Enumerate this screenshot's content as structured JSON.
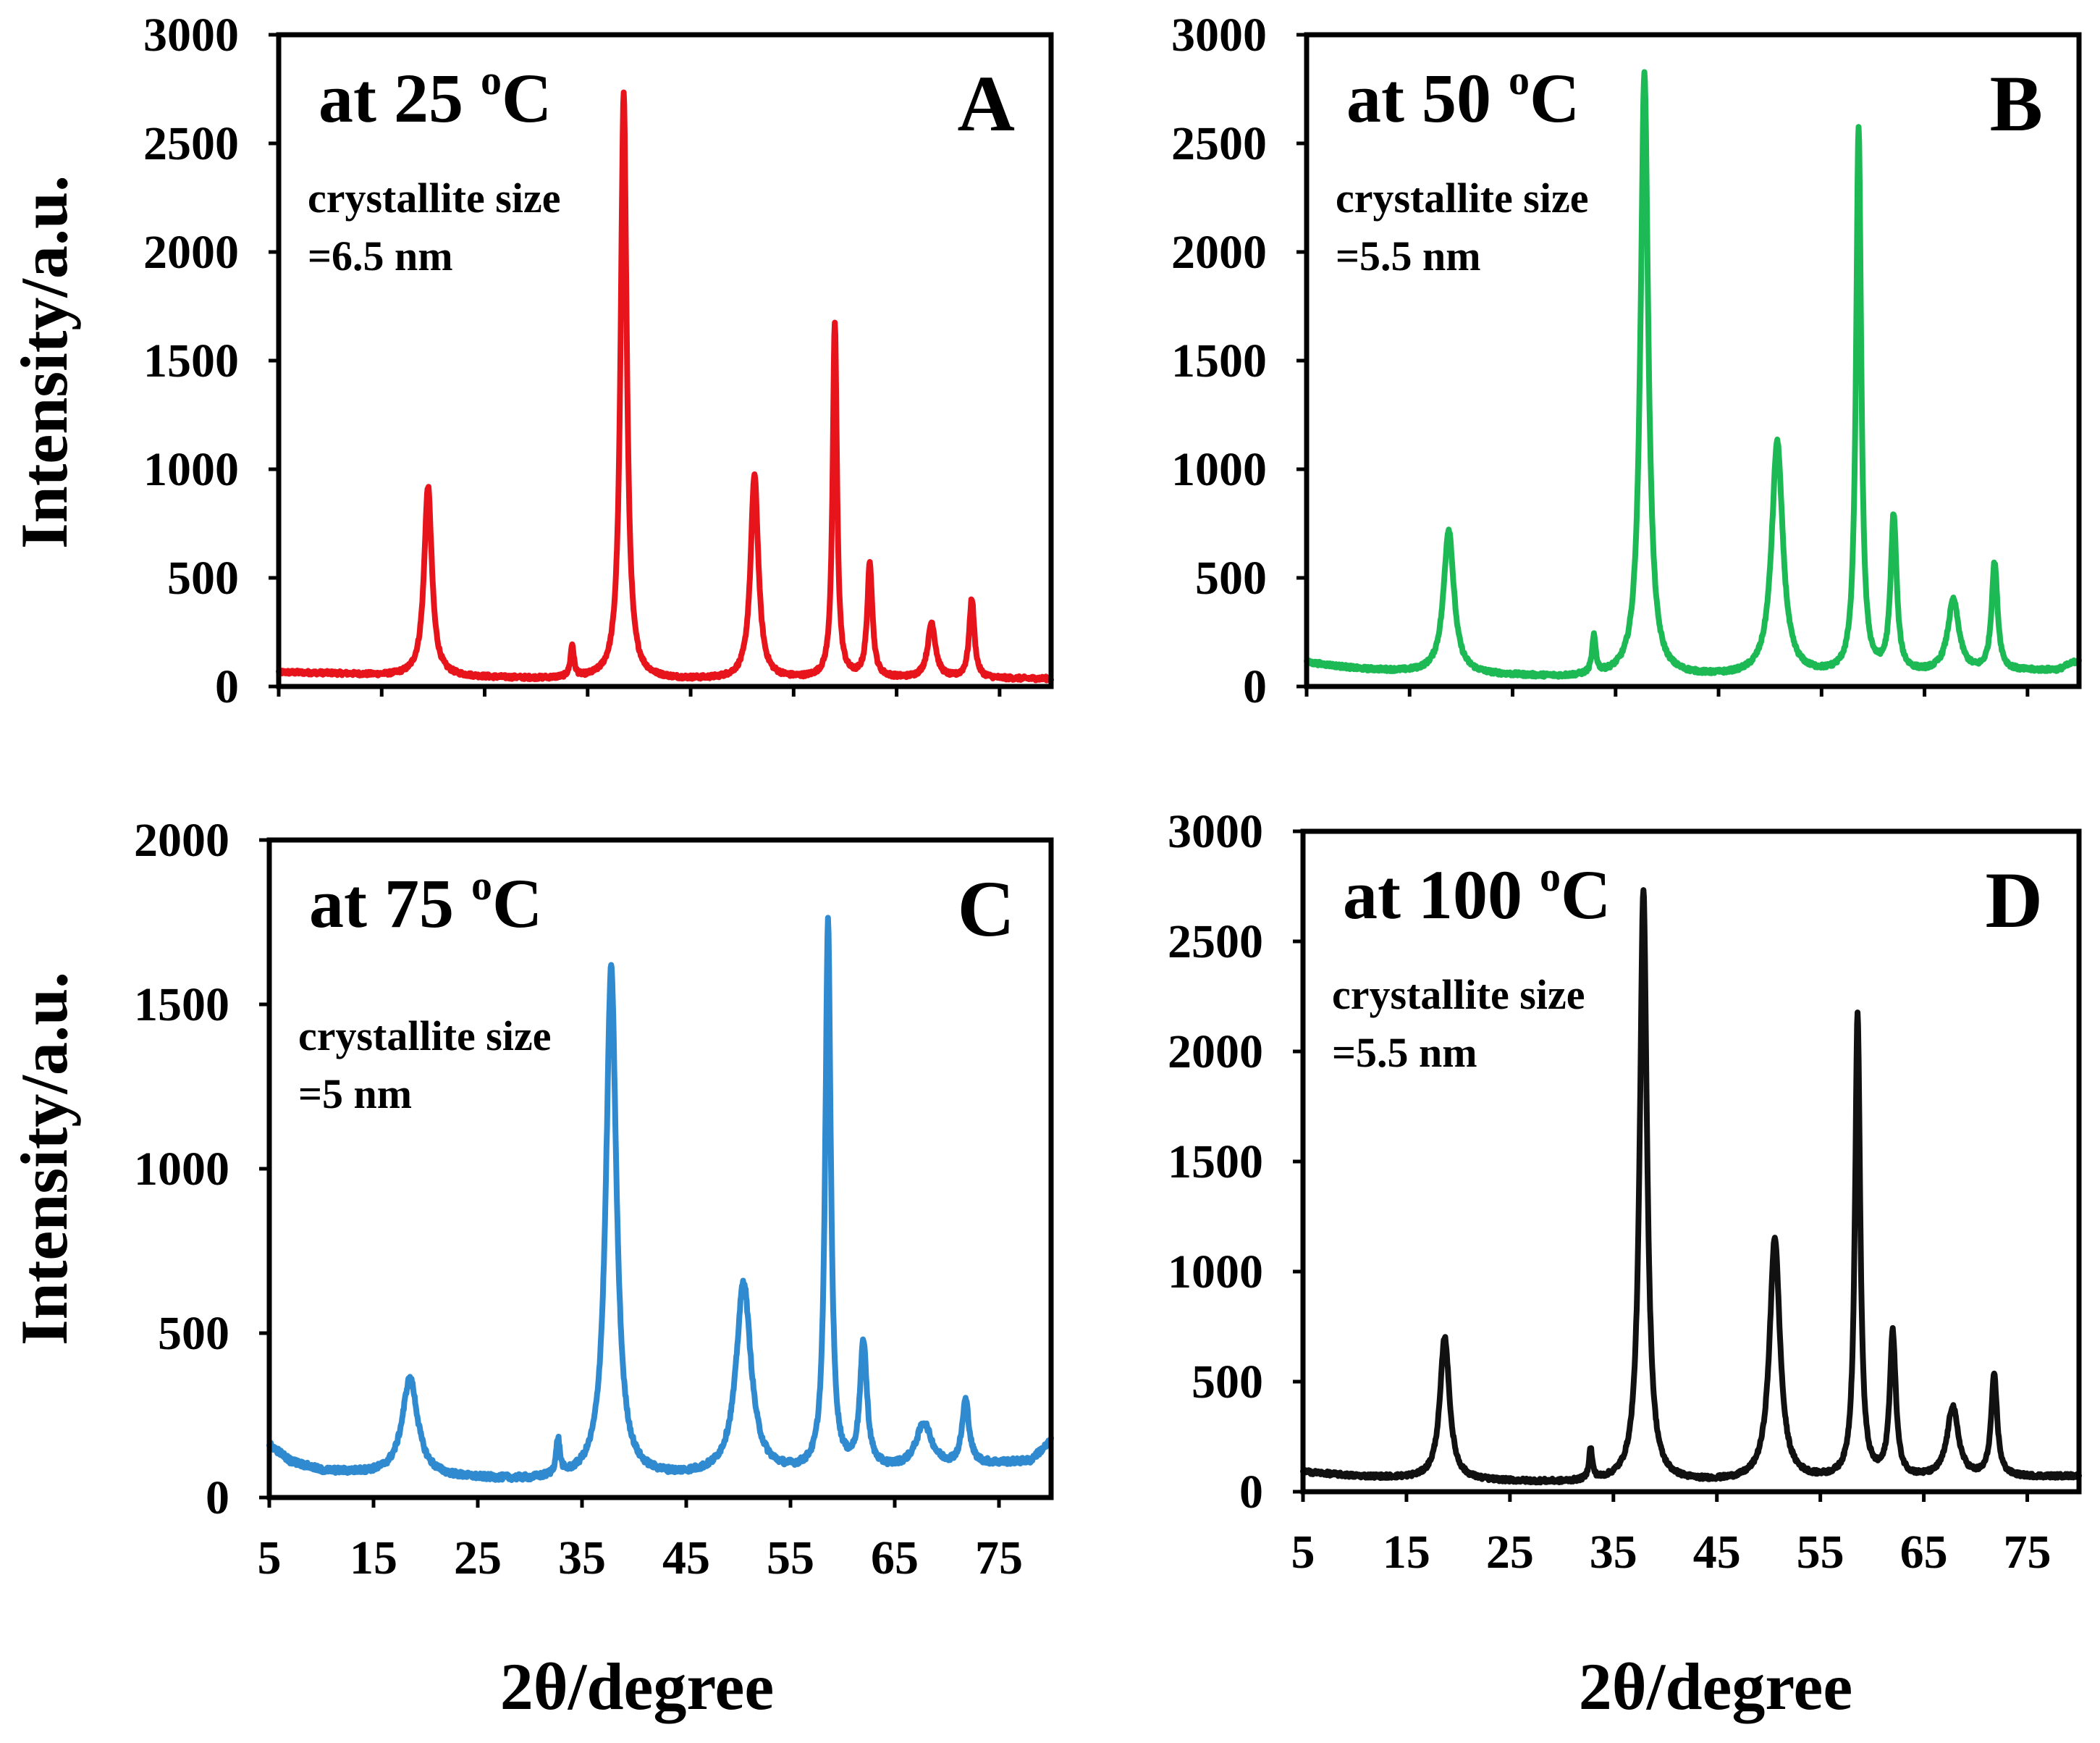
{
  "figure": {
    "y_axis_title": "Intensity/a.u.",
    "x_axis_title": "2θ/degree"
  },
  "chart_data": [
    {
      "type": "line",
      "panel": "A",
      "temperature_label": "at 25 ",
      "temperature_sup": "o",
      "temperature_unit": "C",
      "annotation_line1": "crystallite size",
      "annotation_line2": "=6.5 nm",
      "color": "#e8141b",
      "xlim": [
        5,
        80
      ],
      "ylim": [
        0,
        3000
      ],
      "yticks": [
        0,
        500,
        1000,
        1500,
        2000,
        2500,
        3000
      ],
      "xticks": [],
      "baseline": [
        [
          5,
          65
        ],
        [
          10,
          60
        ],
        [
          15,
          50
        ],
        [
          20,
          45
        ],
        [
          30,
          35
        ],
        [
          40,
          30
        ],
        [
          50,
          30
        ],
        [
          60,
          35
        ],
        [
          70,
          35
        ],
        [
          80,
          35
        ]
      ],
      "peaks": [
        {
          "x": 19.5,
          "y": 920,
          "w": 0.45
        },
        {
          "x": 33.5,
          "y": 180,
          "w": 0.2
        },
        {
          "x": 38.5,
          "y": 2740,
          "w": 0.35
        },
        {
          "x": 51.2,
          "y": 970,
          "w": 0.45
        },
        {
          "x": 59.0,
          "y": 1670,
          "w": 0.25
        },
        {
          "x": 62.4,
          "y": 560,
          "w": 0.3
        },
        {
          "x": 68.4,
          "y": 290,
          "w": 0.45
        },
        {
          "x": 72.3,
          "y": 400,
          "w": 0.3
        }
      ]
    },
    {
      "type": "line",
      "panel": "B",
      "temperature_label": "at 50 ",
      "temperature_sup": "o",
      "temperature_unit": "C",
      "annotation_line1": "crystallite size",
      "annotation_line2": "=5.5 nm",
      "color": "#1db954",
      "xlim": [
        5,
        80
      ],
      "ylim": [
        0,
        3000
      ],
      "yticks": [
        0,
        500,
        1000,
        1500,
        2000,
        2500,
        3000
      ],
      "xticks": [],
      "baseline": [
        [
          5,
          110
        ],
        [
          10,
          80
        ],
        [
          15,
          65
        ],
        [
          20,
          55
        ],
        [
          30,
          40
        ],
        [
          40,
          40
        ],
        [
          50,
          45
        ],
        [
          60,
          50
        ],
        [
          70,
          60
        ],
        [
          78,
          75
        ],
        [
          80,
          120
        ]
      ],
      "peaks": [
        {
          "x": 18.8,
          "y": 720,
          "w": 0.6
        },
        {
          "x": 32.9,
          "y": 210,
          "w": 0.22
        },
        {
          "x": 37.8,
          "y": 2820,
          "w": 0.45
        },
        {
          "x": 50.7,
          "y": 1120,
          "w": 0.65
        },
        {
          "x": 58.6,
          "y": 2550,
          "w": 0.3
        },
        {
          "x": 62.0,
          "y": 770,
          "w": 0.35
        },
        {
          "x": 67.8,
          "y": 390,
          "w": 0.65
        },
        {
          "x": 71.8,
          "y": 560,
          "w": 0.35
        }
      ]
    },
    {
      "type": "line",
      "panel": "C",
      "temperature_label": "at 75 ",
      "temperature_sup": "o",
      "temperature_unit": "C",
      "annotation_line1": "crystallite size",
      "annotation_line2": "=5 nm",
      "color": "#2f8ad0",
      "xlim": [
        5,
        80
      ],
      "ylim": [
        0,
        2000
      ],
      "yticks": [
        0,
        500,
        1000,
        1500,
        2000
      ],
      "xticks": [
        5,
        15,
        25,
        35,
        45,
        55,
        65,
        75
      ],
      "baseline": [
        [
          5,
          160
        ],
        [
          7,
          110
        ],
        [
          10,
          80
        ],
        [
          15,
          70
        ],
        [
          20,
          60
        ],
        [
          30,
          50
        ],
        [
          40,
          55
        ],
        [
          50,
          65
        ],
        [
          60,
          75
        ],
        [
          70,
          90
        ],
        [
          78,
          110
        ],
        [
          80,
          170
        ]
      ],
      "peaks": [
        {
          "x": 18.5,
          "y": 360,
          "w": 0.9
        },
        {
          "x": 32.7,
          "y": 160,
          "w": 0.22
        },
        {
          "x": 37.8,
          "y": 1610,
          "w": 0.6
        },
        {
          "x": 50.5,
          "y": 650,
          "w": 0.85
        },
        {
          "x": 58.6,
          "y": 1740,
          "w": 0.32
        },
        {
          "x": 62.0,
          "y": 460,
          "w": 0.4
        },
        {
          "x": 67.8,
          "y": 220,
          "w": 0.9
        },
        {
          "x": 71.8,
          "y": 290,
          "w": 0.4
        }
      ]
    },
    {
      "type": "line",
      "panel": "D",
      "temperature_label": "at 100 ",
      "temperature_sup": "o",
      "temperature_unit": "C",
      "annotation_line1": "crystallite size",
      "annotation_line2": "=5.5 nm",
      "color": "#111111",
      "xlim": [
        5,
        80
      ],
      "ylim": [
        0,
        3000
      ],
      "yticks": [
        0,
        500,
        1000,
        1500,
        2000,
        2500,
        3000
      ],
      "xticks": [
        5,
        15,
        25,
        35,
        45,
        55,
        65,
        75
      ],
      "baseline": [
        [
          5,
          90
        ],
        [
          10,
          70
        ],
        [
          15,
          60
        ],
        [
          20,
          50
        ],
        [
          30,
          40
        ],
        [
          40,
          40
        ],
        [
          50,
          45
        ],
        [
          60,
          55
        ],
        [
          70,
          60
        ],
        [
          80,
          70
        ]
      ],
      "peaks": [
        {
          "x": 18.7,
          "y": 700,
          "w": 0.55
        },
        {
          "x": 32.8,
          "y": 180,
          "w": 0.2
        },
        {
          "x": 37.9,
          "y": 2730,
          "w": 0.42
        },
        {
          "x": 50.6,
          "y": 1150,
          "w": 0.6
        },
        {
          "x": 58.6,
          "y": 2160,
          "w": 0.3
        },
        {
          "x": 62.0,
          "y": 710,
          "w": 0.35
        },
        {
          "x": 67.8,
          "y": 380,
          "w": 0.65
        },
        {
          "x": 71.8,
          "y": 520,
          "w": 0.35
        }
      ]
    }
  ]
}
